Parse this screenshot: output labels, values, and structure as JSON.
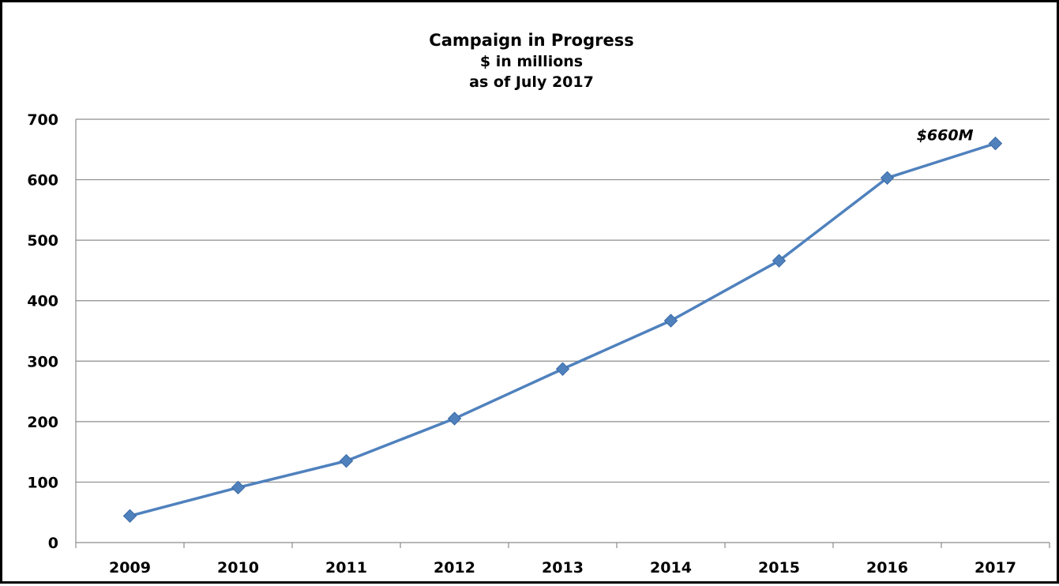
{
  "chart_data": {
    "type": "line",
    "title": "Campaign in Progress",
    "subtitle_lines": [
      "$ in millions",
      "as of July 2017"
    ],
    "categories": [
      "2009",
      "2010",
      "2011",
      "2012",
      "2013",
      "2014",
      "2015",
      "2016",
      "2017"
    ],
    "series": [
      {
        "values": [
          44,
          91,
          135,
          205,
          287,
          367,
          466,
          603,
          660
        ],
        "color": "#4f81bd"
      }
    ],
    "ylim": [
      0,
      700
    ],
    "yticks": [
      0,
      100,
      200,
      300,
      400,
      500,
      600,
      700
    ],
    "grid": true,
    "legend": "none",
    "annotations": [
      {
        "text": "$660M",
        "category": "2017",
        "value": 660
      }
    ]
  }
}
